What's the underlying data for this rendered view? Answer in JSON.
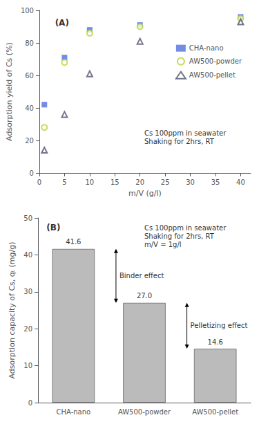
{
  "chart_data": [
    {
      "type": "scatter",
      "title": "(A)",
      "xlabel": "m/V (g/l)",
      "ylabel": "Adsorption yield of Cs (%)",
      "xlim": [
        0,
        42
      ],
      "ylim": [
        0,
        100
      ],
      "xticks": [
        0,
        5,
        10,
        15,
        20,
        25,
        30,
        35,
        40
      ],
      "yticks": [
        0,
        20,
        40,
        60,
        80,
        100
      ],
      "grid": false,
      "legend": "right",
      "annotations": [
        {
          "text": "Cs 100ppm in seawater\nShaking for 2hrs, RT"
        }
      ],
      "series": [
        {
          "name": "CHA-nano",
          "marker": "square",
          "x": [
            1,
            5,
            10,
            20,
            40
          ],
          "values": [
            42,
            71,
            88,
            91,
            96
          ]
        },
        {
          "name": "AW500-powder",
          "marker": "open_circle",
          "x": [
            1,
            5,
            10,
            20,
            40
          ],
          "values": [
            28,
            68,
            86,
            90,
            95
          ]
        },
        {
          "name": "AW500-pellet",
          "marker": "open_triangle",
          "x": [
            1,
            5,
            10,
            20,
            40
          ],
          "values": [
            14,
            36,
            61,
            81,
            93
          ]
        }
      ]
    },
    {
      "type": "bar",
      "title": "(B)",
      "ylabel": "Adsorption capacity of Cs, qₜ (mg/g)",
      "categories": [
        "CHA-nano",
        "AW500-powder",
        "AW500-pellet"
      ],
      "values": [
        41.6,
        27.0,
        14.6
      ],
      "value_labels": [
        "41.6",
        "27.0",
        "14.6"
      ],
      "data_labels": true,
      "color": "#bbbbbb",
      "ylim": [
        0,
        50
      ],
      "yticks": [
        0,
        10,
        20,
        30,
        40,
        50
      ],
      "grid": false,
      "annotations": [
        {
          "text": "Cs 100ppm in seawater\nShaking for 2hrs, RT\nm/V = 1g/l"
        },
        {
          "text": "Binder effect",
          "from": 41.6,
          "to": 27.0
        },
        {
          "text": "Pelletizing effect",
          "from": 27.0,
          "to": 14.6
        }
      ]
    }
  ]
}
